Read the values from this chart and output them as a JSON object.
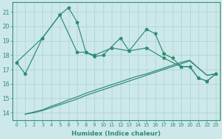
{
  "xlabel": "Humidex (Indice chaleur)",
  "x": [
    0,
    1,
    2,
    3,
    4,
    5,
    6,
    7,
    8,
    9,
    10,
    11,
    12,
    13,
    14,
    15,
    16,
    17,
    18,
    19,
    20,
    21,
    22,
    23
  ],
  "line1_x": [
    0,
    1,
    3,
    5,
    6,
    7,
    8,
    9,
    10,
    12,
    13,
    15,
    16,
    17,
    18,
    19,
    20,
    21,
    22,
    23
  ],
  "line1_y": [
    17.5,
    16.7,
    19.2,
    20.8,
    21.3,
    20.3,
    18.2,
    17.9,
    18.0,
    19.2,
    18.3,
    19.8,
    19.5,
    18.1,
    17.8,
    17.2,
    17.2,
    16.4,
    16.2,
    16.7
  ],
  "line2_x": [
    0,
    3,
    5,
    7,
    8,
    9,
    11,
    13,
    15,
    17,
    19,
    20,
    21,
    22,
    23
  ],
  "line2_y": [
    17.5,
    19.2,
    20.8,
    18.2,
    18.2,
    18.0,
    18.5,
    18.3,
    18.5,
    17.8,
    17.2,
    17.2,
    16.4,
    16.2,
    16.7
  ],
  "line3_x": [
    1,
    2,
    3,
    4,
    5,
    6,
    7,
    8,
    9,
    10,
    11,
    12,
    13,
    14,
    15,
    16,
    17,
    18,
    19,
    20,
    21,
    22,
    23
  ],
  "line3_y": [
    13.9,
    14.05,
    14.2,
    14.45,
    14.65,
    14.9,
    15.1,
    15.35,
    15.55,
    15.75,
    15.95,
    16.15,
    16.35,
    16.55,
    16.7,
    16.9,
    17.1,
    17.3,
    17.5,
    17.65,
    17.1,
    16.6,
    16.7
  ],
  "line4_x": [
    1,
    2,
    3,
    4,
    5,
    6,
    7,
    8,
    9,
    10,
    11,
    12,
    13,
    14,
    15,
    16,
    17,
    18,
    19,
    20,
    21,
    22,
    23
  ],
  "line4_y": [
    13.9,
    14.0,
    14.15,
    14.35,
    14.55,
    14.75,
    14.95,
    15.2,
    15.4,
    15.6,
    15.8,
    16.0,
    16.2,
    16.4,
    16.6,
    16.8,
    17.0,
    17.2,
    17.4,
    17.6,
    17.1,
    16.6,
    16.7
  ],
  "color": "#2e8b74",
  "bg_color": "#cce8e8",
  "grid_color": "#aad0d0",
  "ylim": [
    13.5,
    21.7
  ],
  "yticks": [
    14,
    15,
    16,
    17,
    18,
    19,
    20,
    21
  ]
}
